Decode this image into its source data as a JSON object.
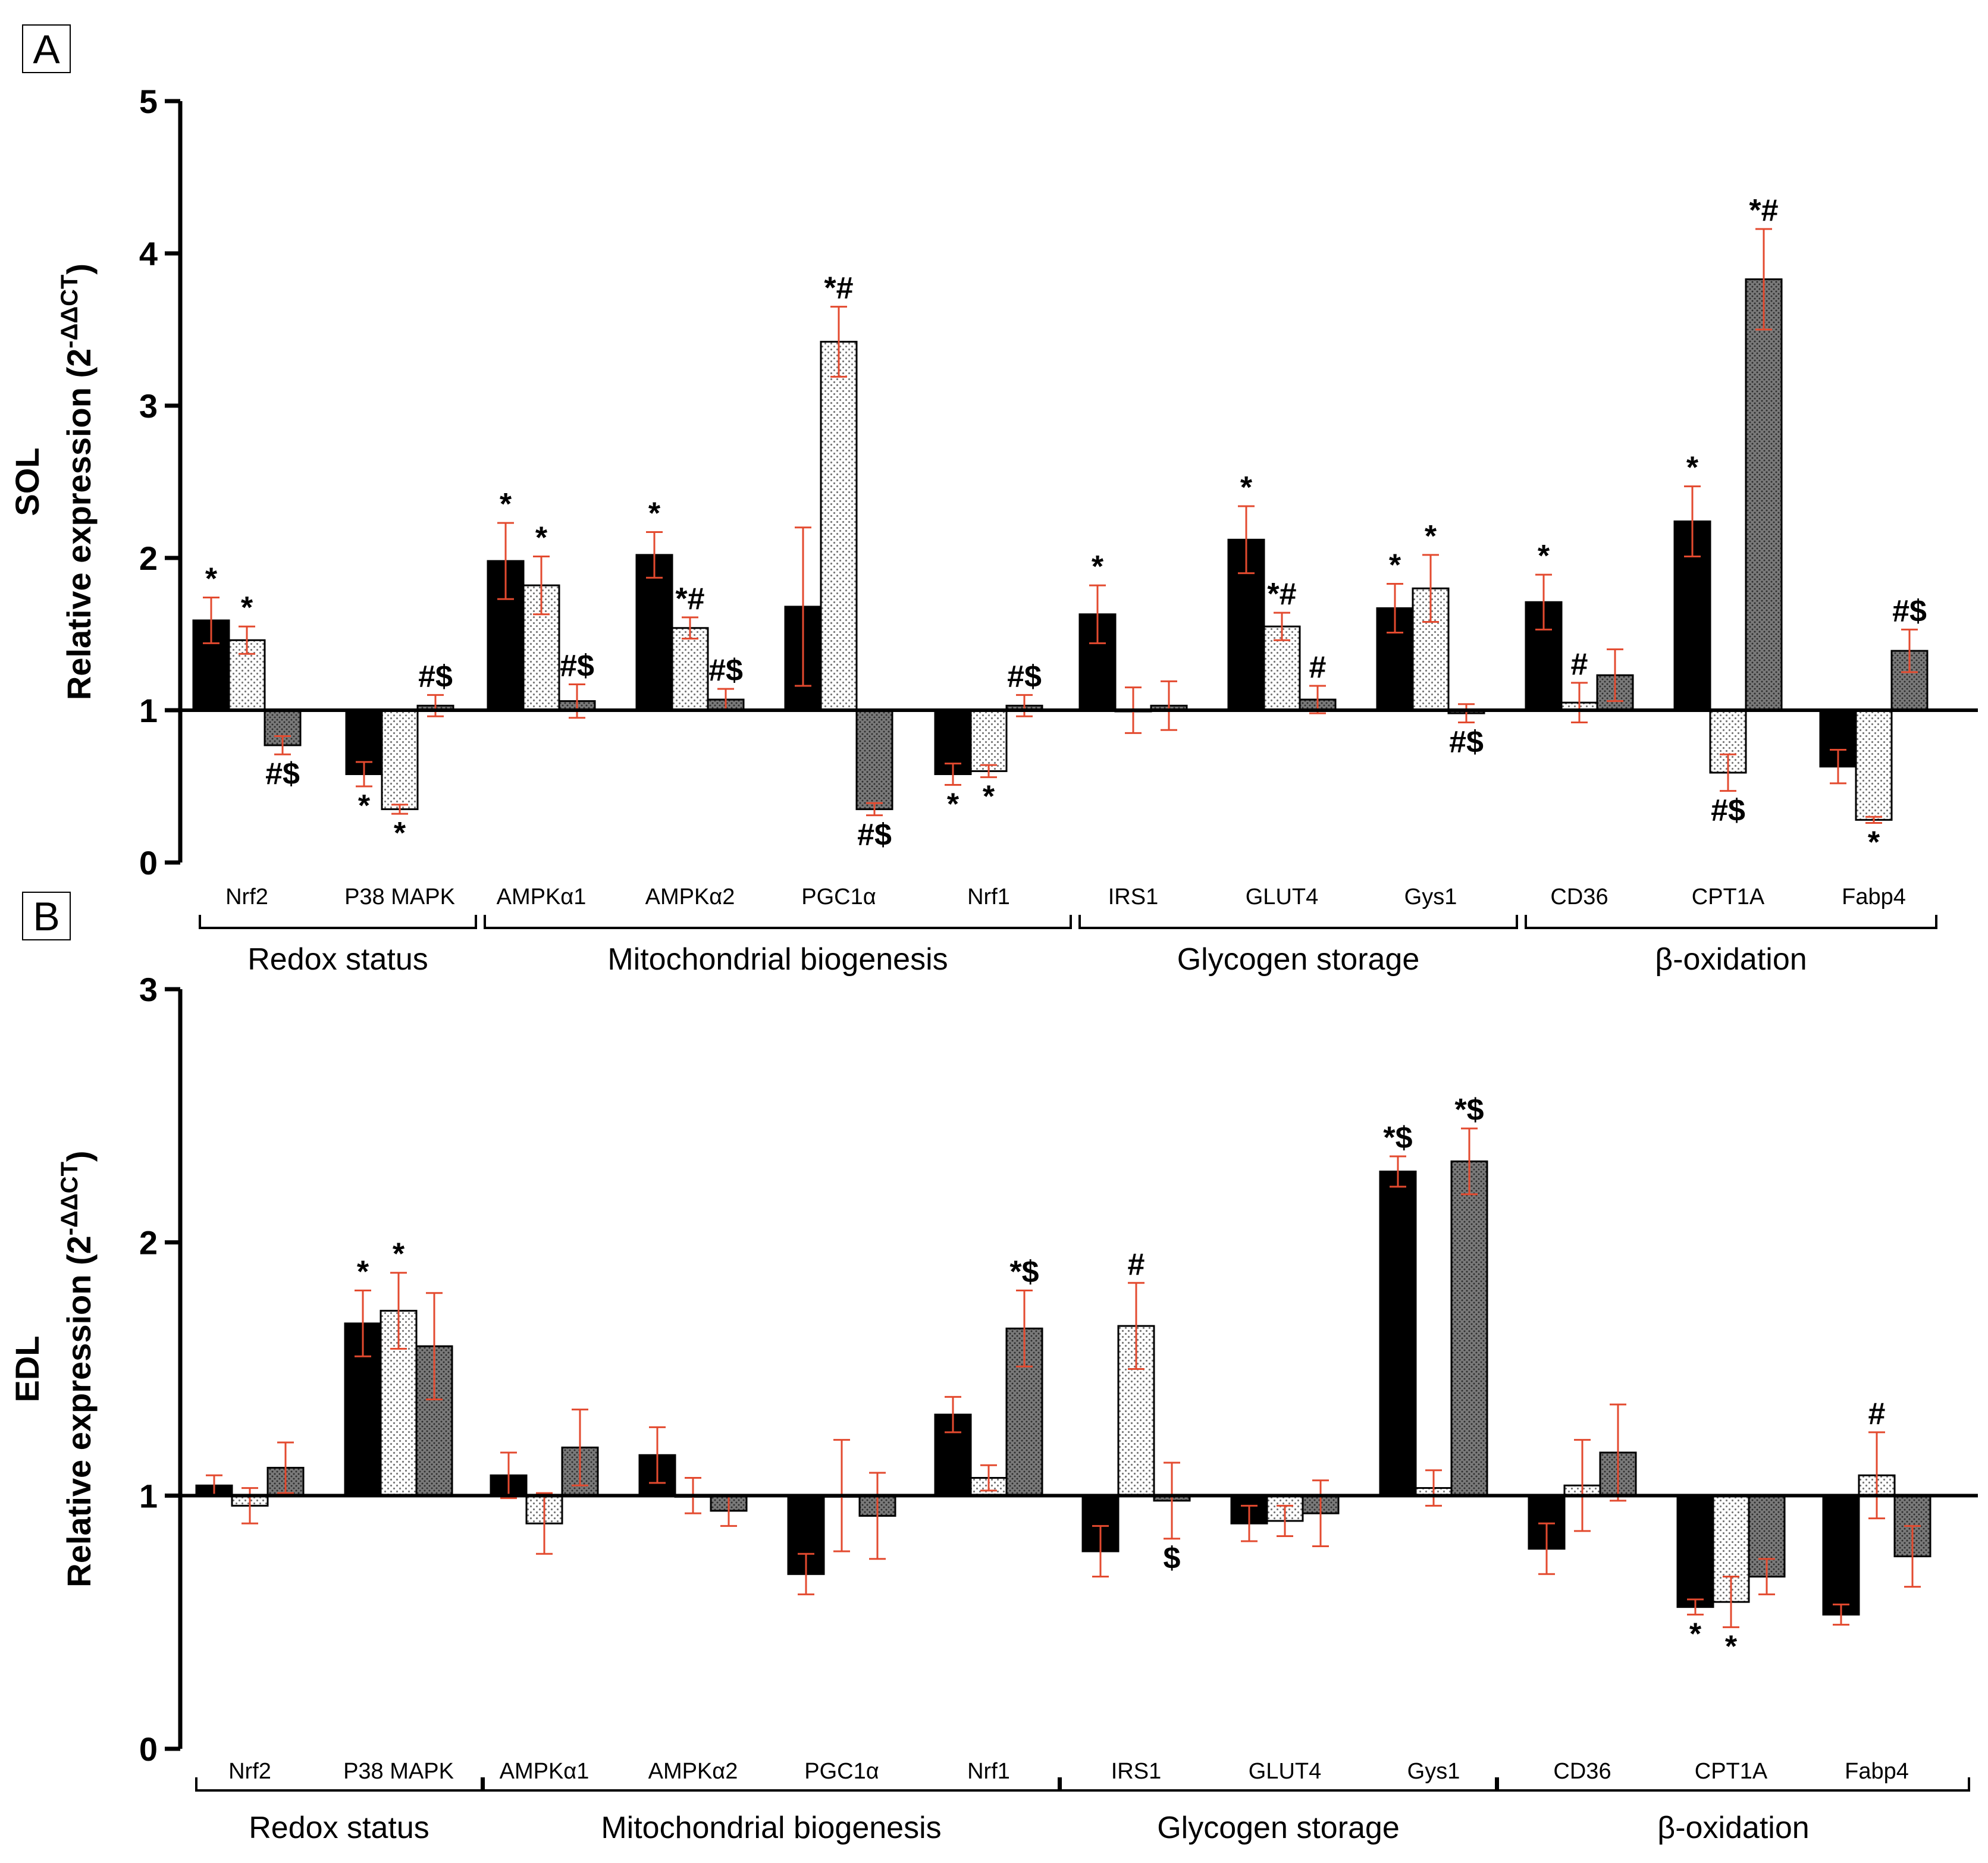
{
  "chart_data": [
    {
      "type": "bar",
      "panel": "A",
      "ylabel_bold": "SOL",
      "ylabel": "Relative expression (2-ΔΔCT)",
      "ylabel_base": "Relative expression (2",
      "ylabel_sup": "-ΔΔCT",
      "ylabel_close": ")",
      "ylim": [
        0,
        5
      ],
      "yticks": [
        0,
        1,
        2,
        3,
        4,
        5
      ],
      "baseline": 1,
      "categories": [
        "Nrf2",
        "P38 MAPK",
        "AMPKα1",
        "AMPKα2",
        "PGC1α",
        "Nrf1",
        "IRS1",
        "GLUT4",
        "Gys1",
        "CD36",
        "CPT1A",
        "Fabp4"
      ],
      "groups": [
        {
          "label": "Redox status",
          "categories": [
            "Nrf2",
            "P38 MAPK"
          ]
        },
        {
          "label": "Mitochondrial biogenesis",
          "categories": [
            "AMPKα1",
            "AMPKα2",
            "PGC1α",
            "Nrf1"
          ]
        },
        {
          "label": "Glycogen storage",
          "categories": [
            "IRS1",
            "GLUT4",
            "Gys1"
          ]
        },
        {
          "label": "β-oxidation",
          "categories": [
            "CD36",
            "CPT1A",
            "Fabp4"
          ]
        }
      ],
      "series": [
        {
          "name": "series 1",
          "fill": "#000000",
          "values": [
            1.59,
            0.58,
            1.98,
            2.02,
            1.68,
            0.58,
            1.63,
            2.12,
            1.67,
            1.71,
            2.24,
            0.63
          ],
          "errors": [
            0.15,
            0.08,
            0.25,
            0.15,
            0.52,
            0.07,
            0.19,
            0.22,
            0.16,
            0.18,
            0.23,
            0.11
          ],
          "annotations": [
            "*",
            "*",
            "*",
            "*",
            "",
            "*",
            "*",
            "*",
            "*",
            "*",
            "*",
            ""
          ]
        },
        {
          "name": "series 2",
          "fill": "dots-light",
          "values": [
            1.46,
            0.35,
            1.82,
            1.54,
            3.42,
            0.6,
            1.0,
            1.55,
            1.8,
            1.05,
            0.59,
            0.28
          ],
          "errors": [
            0.09,
            0.03,
            0.19,
            0.07,
            0.23,
            0.04,
            0.15,
            0.09,
            0.22,
            0.13,
            0.12,
            0.02
          ],
          "annotations": [
            "*",
            "*",
            "*",
            "*#",
            "*#",
            "*",
            "",
            "*#",
            "*",
            "#",
            "#$",
            "*"
          ]
        },
        {
          "name": "series 3",
          "fill": "dots-dark",
          "values": [
            0.77,
            1.03,
            1.06,
            1.07,
            0.35,
            1.03,
            1.03,
            1.07,
            0.98,
            1.23,
            3.83,
            1.39
          ],
          "errors": [
            0.06,
            0.07,
            0.11,
            0.07,
            0.04,
            0.07,
            0.16,
            0.09,
            0.06,
            0.17,
            0.33,
            0.14
          ],
          "annotations": [
            "#$",
            "#$",
            "#$",
            "#$",
            "#$",
            "#$",
            "",
            "#",
            "#$",
            "",
            "*#",
            "#$"
          ]
        }
      ]
    },
    {
      "type": "bar",
      "panel": "B",
      "ylabel_bold": "EDL",
      "ylabel": "Relative expression (2-ΔΔCT)",
      "ylabel_base": "Relative expression (2",
      "ylabel_sup": "-ΔΔCT",
      "ylabel_close": ")",
      "ylim": [
        0,
        3
      ],
      "yticks": [
        0,
        1,
        2,
        3
      ],
      "baseline": 1,
      "categories": [
        "Nrf2",
        "P38 MAPK",
        "AMPKα1",
        "AMPKα2",
        "PGC1α",
        "Nrf1",
        "IRS1",
        "GLUT4",
        "Gys1",
        "CD36",
        "CPT1A",
        "Fabp4"
      ],
      "groups": [
        {
          "label": "Redox status",
          "categories": [
            "Nrf2",
            "P38 MAPK"
          ]
        },
        {
          "label": "Mitochondrial biogenesis",
          "categories": [
            "AMPKα1",
            "AMPKα2",
            "PGC1α",
            "Nrf1"
          ]
        },
        {
          "label": "Glycogen storage",
          "categories": [
            "IRS1",
            "GLUT4",
            "Gys1"
          ]
        },
        {
          "label": "β-oxidation",
          "categories": [
            "CD36",
            "CPT1A",
            "Fabp4"
          ]
        }
      ],
      "series": [
        {
          "name": "series 1",
          "fill": "#000000",
          "values": [
            1.04,
            1.68,
            1.08,
            1.16,
            0.69,
            1.32,
            0.78,
            0.89,
            2.28,
            0.79,
            0.56,
            0.53
          ],
          "errors": [
            0.04,
            0.13,
            0.09,
            0.11,
            0.08,
            0.07,
            0.1,
            0.07,
            0.06,
            0.1,
            0.03,
            0.04
          ],
          "annotations": [
            "",
            "*",
            "",
            "",
            "",
            "",
            "",
            "",
            "*$",
            "",
            "*",
            ""
          ]
        },
        {
          "name": "series 2",
          "fill": "dots-light",
          "values": [
            0.96,
            1.73,
            0.89,
            1.0,
            1.0,
            1.07,
            1.67,
            0.9,
            1.03,
            1.04,
            0.58,
            1.08
          ],
          "errors": [
            0.07,
            0.15,
            0.12,
            0.07,
            0.22,
            0.05,
            0.17,
            0.06,
            0.07,
            0.18,
            0.1,
            0.17
          ],
          "annotations": [
            "",
            "*",
            "",
            "",
            "",
            "",
            "#",
            "",
            "",
            "",
            "*",
            "#"
          ]
        },
        {
          "name": "series 3",
          "fill": "dots-dark",
          "values": [
            1.11,
            1.59,
            1.19,
            0.94,
            0.92,
            1.66,
            0.98,
            0.93,
            2.32,
            1.17,
            0.68,
            0.76
          ],
          "errors": [
            0.1,
            0.21,
            0.15,
            0.06,
            0.17,
            0.15,
            0.15,
            0.13,
            0.13,
            0.19,
            0.07,
            0.12
          ],
          "annotations": [
            "",
            "",
            "",
            "",
            "",
            "*$",
            "$",
            "",
            "*$",
            "",
            "",
            ""
          ]
        }
      ]
    }
  ]
}
